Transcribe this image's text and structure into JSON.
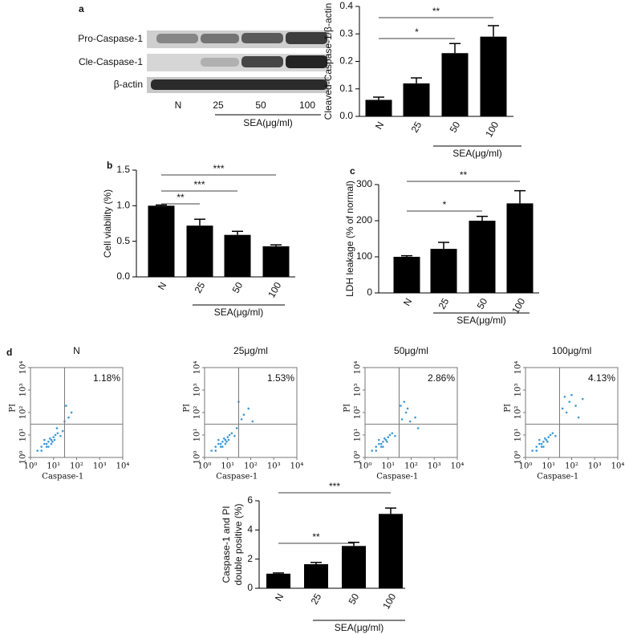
{
  "chart_data": [
    {
      "type": "blot",
      "panel": "a",
      "rows": [
        "Pro-Caspase-1",
        "Cle-Caspase-1",
        "β-actin"
      ],
      "categories": [
        "N",
        "25",
        "50",
        "100"
      ],
      "xlabel": "SEA(μg/ml)"
    },
    {
      "type": "bar",
      "ylabel": [
        "Cleaved-Caspase-1/β-actin"
      ],
      "xlabel": "SEA(μg/ml)",
      "categories": [
        "N",
        "25",
        "50",
        "100"
      ],
      "values": [
        0.06,
        0.12,
        0.23,
        0.29
      ],
      "errors": [
        0.01,
        0.02,
        0.035,
        0.04
      ],
      "color": "#000000",
      "ylim": [
        0,
        0.4
      ],
      "yticks": [
        {
          "value": 0,
          "label": "0.0"
        },
        0.1,
        0.2,
        0.3,
        0.4
      ],
      "significance": [
        {
          "label": "*",
          "from": "N",
          "to": "50"
        },
        {
          "label": "**",
          "from": "N",
          "to": "100"
        }
      ]
    },
    {
      "type": "bar",
      "panel": "b",
      "ylabel": [
        "Cell viability (%)"
      ],
      "xlabel": "SEA(μg/ml)",
      "categories": [
        "N",
        "25",
        "50",
        "100"
      ],
      "values": [
        1.0,
        0.72,
        0.59,
        0.43
      ],
      "errors": [
        0.01,
        0.09,
        0.05,
        0.02
      ],
      "color": "#000000",
      "ylim": [
        0,
        1.5
      ],
      "yticks": [
        {
          "value": 0,
          "label": "0.0"
        },
        0.5,
        {
          "value": 1,
          "label": "1.0"
        },
        1.5
      ],
      "significance": [
        {
          "label": "**",
          "from": "N",
          "to": "25"
        },
        {
          "label": "***",
          "from": "N",
          "to": "50"
        },
        {
          "label": "***",
          "from": "N",
          "to": "100"
        }
      ]
    },
    {
      "type": "bar",
      "panel": "c",
      "ylabel": [
        "LDH leakage (% of normal)"
      ],
      "xlabel": "SEA(μg/ml)",
      "categories": [
        "N",
        "25",
        "50",
        "100"
      ],
      "values": [
        100,
        122,
        200,
        248
      ],
      "errors": [
        3,
        18,
        12,
        35
      ],
      "color": "#000000",
      "ylim": [
        0,
        300
      ],
      "yticks": [
        0,
        100,
        200,
        300
      ],
      "significance": [
        {
          "label": "*",
          "from": "N",
          "to": "50"
        },
        {
          "label": "**",
          "from": "N",
          "to": "100"
        }
      ]
    },
    {
      "type": "scatter",
      "panel": "d",
      "title": "N",
      "annotation": "1.18%",
      "xlabel": "Caspase-1",
      "ylabel": "PI",
      "log": true,
      "color": "#3d9ad6",
      "xlim": [
        1,
        10000
      ],
      "ylim": [
        1,
        10000
      ],
      "gate": {
        "x": 30,
        "y": 30
      },
      "xticks": [
        {
          "value": 1,
          "label": "10⁰"
        },
        {
          "value": 10,
          "label": "10¹"
        },
        {
          "value": 100,
          "label": "10²"
        },
        {
          "value": 1000,
          "label": "10³"
        },
        {
          "value": 10000,
          "label": "10⁴"
        }
      ],
      "yticks": [
        {
          "value": 1,
          "label": "10⁰"
        },
        {
          "value": 10,
          "label": "10¹"
        },
        {
          "value": 100,
          "label": "10²"
        },
        {
          "value": 1000,
          "label": "10³"
        },
        {
          "value": 10000,
          "label": "10⁴"
        }
      ],
      "x": [
        2,
        3,
        4,
        5,
        6,
        8,
        10,
        12,
        3,
        5,
        7,
        9,
        15,
        20,
        4,
        6,
        8,
        11,
        14,
        25,
        45,
        60,
        35,
        30
      ],
      "y": [
        2,
        3,
        4,
        3,
        5,
        6,
        8,
        10,
        2,
        4,
        7,
        5,
        12,
        9,
        6,
        3,
        4,
        6,
        20,
        15,
        60,
        100,
        200,
        40
      ]
    },
    {
      "type": "scatter",
      "title": "25μg/ml",
      "annotation": "1.53%",
      "xlabel": "Caspase-1",
      "ylabel": "PI",
      "log": true,
      "color": "#3d9ad6",
      "xlim": [
        1,
        10000
      ],
      "ylim": [
        1,
        10000
      ],
      "gate": {
        "x": 30,
        "y": 30
      },
      "xticks": [
        {
          "value": 1,
          "label": "10⁰"
        },
        {
          "value": 10,
          "label": "10¹"
        },
        {
          "value": 100,
          "label": "10²"
        },
        {
          "value": 1000,
          "label": "10³"
        },
        {
          "value": 10000,
          "label": "10⁴"
        }
      ],
      "yticks": [
        {
          "value": 1,
          "label": "10⁰"
        },
        {
          "value": 10,
          "label": "10¹"
        },
        {
          "value": 100,
          "label": "10²"
        },
        {
          "value": 1000,
          "label": "10³"
        },
        {
          "value": 10000,
          "label": "10⁴"
        }
      ],
      "x": [
        2,
        3,
        4,
        5,
        6,
        8,
        10,
        12,
        3,
        5,
        7,
        9,
        15,
        20,
        4,
        6,
        8,
        11,
        40,
        50,
        80,
        120,
        30,
        25
      ],
      "y": [
        2,
        3,
        4,
        3,
        5,
        6,
        8,
        10,
        2,
        4,
        7,
        5,
        12,
        9,
        6,
        3,
        4,
        6,
        50,
        80,
        150,
        40,
        300,
        20
      ]
    },
    {
      "type": "scatter",
      "title": "50μg/ml",
      "annotation": "2.86%",
      "xlabel": "Caspase-1",
      "ylabel": "PI",
      "log": true,
      "color": "#3d9ad6",
      "xlim": [
        1,
        10000
      ],
      "ylim": [
        1,
        10000
      ],
      "gate": {
        "x": 30,
        "y": 30
      },
      "xticks": [
        {
          "value": 1,
          "label": "10⁰"
        },
        {
          "value": 10,
          "label": "10¹"
        },
        {
          "value": 100,
          "label": "10²"
        },
        {
          "value": 1000,
          "label": "10³"
        },
        {
          "value": 10000,
          "label": "10⁴"
        }
      ],
      "yticks": [
        {
          "value": 1,
          "label": "10⁰"
        },
        {
          "value": 10,
          "label": "10¹"
        },
        {
          "value": 100,
          "label": "10²"
        },
        {
          "value": 1000,
          "label": "10³"
        },
        {
          "value": 10000,
          "label": "10⁴"
        }
      ],
      "x": [
        2,
        3,
        4,
        5,
        6,
        8,
        10,
        12,
        3,
        5,
        7,
        9,
        15,
        20,
        4,
        6,
        40,
        60,
        90,
        150,
        50,
        70,
        200,
        35
      ],
      "y": [
        2,
        3,
        4,
        3,
        5,
        6,
        8,
        10,
        2,
        4,
        7,
        5,
        12,
        9,
        6,
        3,
        50,
        100,
        40,
        60,
        300,
        150,
        20,
        200
      ]
    },
    {
      "type": "scatter",
      "title": "100μg/ml",
      "annotation": "4.13%",
      "xlabel": "Caspase-1",
      "ylabel": "PI",
      "log": true,
      "color": "#3d9ad6",
      "xlim": [
        1,
        10000
      ],
      "ylim": [
        1,
        10000
      ],
      "gate": {
        "x": 30,
        "y": 30
      },
      "xticks": [
        {
          "value": 1,
          "label": "10⁰"
        },
        {
          "value": 10,
          "label": "10¹"
        },
        {
          "value": 100,
          "label": "10²"
        },
        {
          "value": 1000,
          "label": "10³"
        },
        {
          "value": 10000,
          "label": "10⁴"
        }
      ],
      "yticks": [
        {
          "value": 1,
          "label": "10⁰"
        },
        {
          "value": 10,
          "label": "10¹"
        },
        {
          "value": 100,
          "label": "10²"
        },
        {
          "value": 1000,
          "label": "10³"
        },
        {
          "value": 10000,
          "label": "10⁴"
        }
      ],
      "x": [
        2,
        3,
        4,
        5,
        6,
        8,
        10,
        12,
        3,
        5,
        7,
        9,
        15,
        20,
        4,
        6,
        50,
        80,
        150,
        300,
        60,
        100,
        200,
        40
      ],
      "y": [
        2,
        3,
        4,
        3,
        5,
        6,
        8,
        10,
        2,
        4,
        7,
        5,
        12,
        9,
        6,
        3,
        500,
        300,
        200,
        400,
        100,
        600,
        60,
        150
      ]
    },
    {
      "type": "bar",
      "ylabel": [
        "Caspase-1 and PI",
        "double positive (%)"
      ],
      "xlabel": "SEA(μg/ml)",
      "categories": [
        "N",
        "25",
        "50",
        "100"
      ],
      "values": [
        1.0,
        1.65,
        2.9,
        5.1
      ],
      "errors": [
        0.05,
        0.12,
        0.25,
        0.4
      ],
      "color": "#000000",
      "ylim": [
        0,
        6
      ],
      "yticks": [
        0,
        2,
        4,
        6
      ],
      "significance": [
        {
          "label": "**",
          "from": "N",
          "to": "50"
        },
        {
          "label": "***",
          "from": "N",
          "to": "100"
        }
      ]
    }
  ]
}
